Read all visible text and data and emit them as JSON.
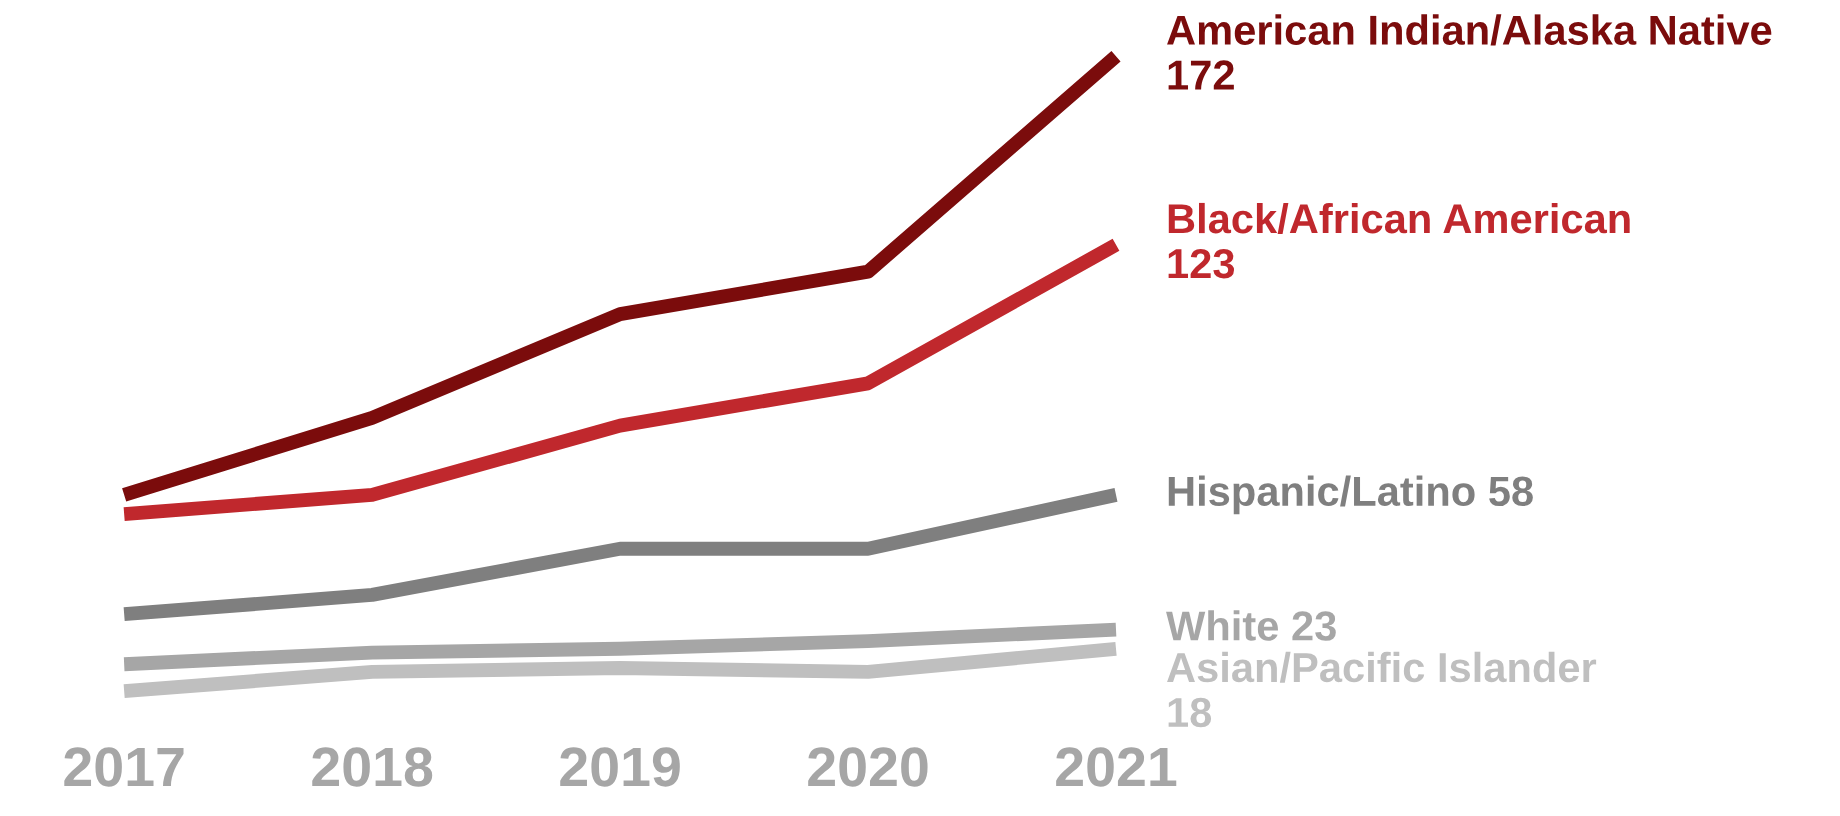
{
  "chart_data": {
    "type": "line",
    "categories": [
      "2017",
      "2018",
      "2019",
      "2020",
      "2021"
    ],
    "legend": false,
    "grid": false,
    "tick_labels": "x",
    "marker": "none",
    "line_style": "solid",
    "series": [
      {
        "name": "American Indian/Alaska Native",
        "color": "#7b0c0c",
        "values": [
          58,
          78,
          105,
          116,
          172
        ],
        "value_labels": [
          null,
          null,
          null,
          null,
          "172"
        ]
      },
      {
        "name": "Black/African American",
        "color": "#c0282d",
        "values": [
          53,
          58,
          76,
          87,
          123
        ],
        "value_labels": [
          null,
          null,
          null,
          null,
          "123"
        ]
      },
      {
        "name": "Hispanic/Latino",
        "color": "#7f7f7f",
        "values": [
          27,
          32,
          44,
          44,
          58
        ],
        "value_labels": [
          null,
          null,
          null,
          null,
          "58"
        ]
      },
      {
        "name": "White",
        "color": "#a6a6a6",
        "values": [
          14,
          17,
          18,
          20,
          23
        ],
        "value_labels": [
          null,
          null,
          null,
          null,
          "23"
        ]
      },
      {
        "name": "Asian/Pacific Islander",
        "color": "#bfbfbf",
        "values": [
          7,
          12,
          13,
          12,
          18
        ],
        "value_labels": [
          null,
          null,
          null,
          null,
          "18"
        ]
      }
    ]
  }
}
